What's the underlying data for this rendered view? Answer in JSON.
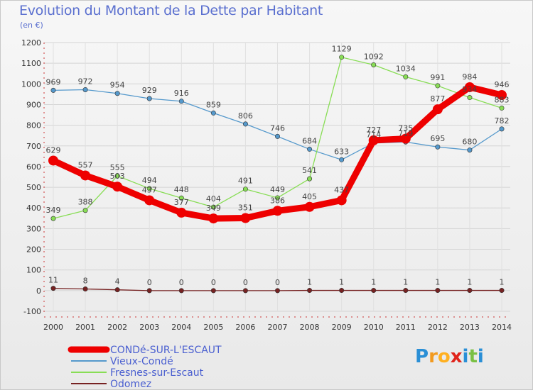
{
  "title": "Evolution du Montant de la Dette par Habitant",
  "unit": "(en €)",
  "logo": {
    "text": "Proxiti",
    "icon": "proxiti-logo"
  },
  "chart_data": {
    "type": "line",
    "title": "Evolution du Montant de la Dette par Habitant",
    "ylabel": "(en €)",
    "x": [
      2000,
      2001,
      2002,
      2003,
      2004,
      2005,
      2006,
      2007,
      2008,
      2009,
      2010,
      2011,
      2012,
      2013,
      2014
    ],
    "ylim": [
      -100,
      1200
    ],
    "yticks": [
      -100,
      0,
      100,
      200,
      300,
      400,
      500,
      600,
      700,
      800,
      900,
      1000,
      1100,
      1200
    ],
    "grid": true,
    "legend": "bottom-left",
    "series": [
      {
        "name": "CONDé-SUR-L'ESCAUT",
        "color": "#ee0000",
        "highlight": true,
        "values": [
          629,
          557,
          503,
          437,
          377,
          349,
          351,
          386,
          405,
          437,
          727,
          735,
          877,
          984,
          946
        ]
      },
      {
        "name": "Vieux-Condé",
        "color": "#5599cc",
        "values": [
          969,
          972,
          954,
          929,
          916,
          859,
          806,
          746,
          684,
          633,
          714,
          719,
          695,
          680,
          782
        ]
      },
      {
        "name": "Fresnes-sur-Escaut",
        "color": "#88dd55",
        "values": [
          349,
          388,
          555,
          494,
          448,
          404,
          491,
          449,
          541,
          1129,
          1092,
          1034,
          991,
          934,
          883
        ]
      },
      {
        "name": "Odomez",
        "color": "#772222",
        "values": [
          11,
          8,
          4,
          0,
          0,
          0,
          0,
          0,
          1,
          1,
          1,
          1,
          1,
          1,
          1
        ]
      }
    ]
  }
}
